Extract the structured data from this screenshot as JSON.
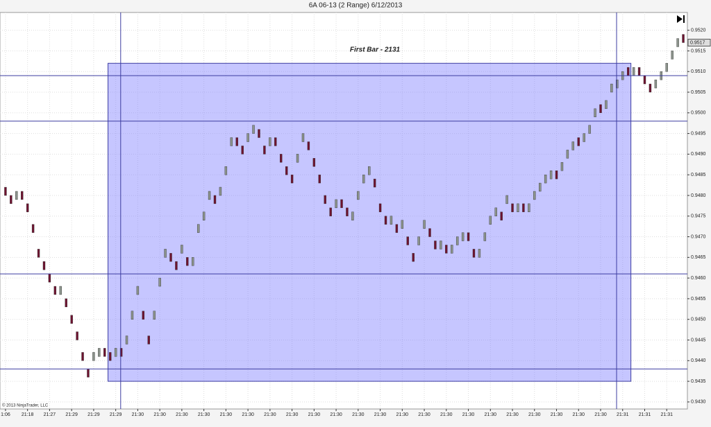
{
  "chart_data": {
    "type": "candlestick",
    "title": "6A 06-13 (2 Range)  6/12/2013",
    "annotation": "First Bar - 2131",
    "copyright": "© 2013 NinjaTrader, LLC",
    "categories": [
      "1:06",
      null,
      null,
      null,
      "21:18",
      null,
      null,
      null,
      "21:27",
      null,
      null,
      null,
      "21:29",
      null,
      null,
      null,
      "21:29",
      null,
      null,
      null,
      "21:29",
      null,
      null,
      null,
      "21:30",
      null,
      null,
      null,
      "21:30",
      null,
      null,
      null,
      "21:30",
      null,
      null,
      null,
      "21:30",
      null,
      null,
      null,
      "21:30",
      null,
      null,
      null,
      "21:30",
      null,
      null,
      null,
      "21:30",
      null,
      null,
      null,
      "21:30",
      null,
      null,
      null,
      "21:30",
      null,
      null,
      null,
      "21:30",
      null,
      null,
      null,
      "21:30",
      null,
      null,
      null,
      "21:30",
      null,
      null,
      null,
      "21:30",
      null,
      null,
      null,
      "21:30",
      null,
      null,
      null,
      "21:30",
      null,
      null,
      null,
      "21:30",
      null,
      null,
      null,
      "21:30",
      null,
      null,
      null,
      "21:30",
      null,
      null,
      null,
      "21:30",
      null,
      null,
      null,
      "21:30",
      null,
      null,
      null,
      "21:30",
      null,
      null,
      null,
      "21:30",
      null,
      null,
      null,
      "21:31",
      null,
      null,
      null,
      "21:31",
      null,
      null,
      null,
      "21:31",
      null,
      null,
      null
    ],
    "open": [
      0.9482,
      0.948,
      0.9479,
      0.9481,
      0.9478,
      0.9473,
      0.9467,
      0.9464,
      0.9461,
      0.9458,
      0.9456,
      0.9455,
      0.9451,
      0.9447,
      0.9442,
      0.9438,
      0.944,
      0.9441,
      0.9443,
      0.9442,
      0.9441,
      0.9443,
      0.9444,
      0.945,
      0.9456,
      0.9452,
      0.9446,
      0.945,
      0.9458,
      0.9465,
      0.9466,
      0.9464,
      0.9466,
      0.9465,
      0.9463,
      0.9471,
      0.9474,
      0.9479,
      0.948,
      0.948,
      0.9485,
      0.9492,
      0.9494,
      0.9492,
      0.9493,
      0.9495,
      0.9496,
      0.9492,
      0.9492,
      0.9494,
      0.949,
      0.9487,
      0.9485,
      0.9488,
      0.9493,
      0.9493,
      0.9489,
      0.9485,
      0.948,
      0.9477,
      0.9477,
      0.9479,
      0.9477,
      0.9474,
      0.9479,
      0.9483,
      0.9485,
      0.9484,
      0.9478,
      0.9475,
      0.9473,
      0.9473,
      0.9472,
      0.947,
      0.9466,
      0.9468,
      0.9472,
      0.9472,
      0.9469,
      0.9467,
      0.9468,
      0.9466,
      0.9468,
      0.9469,
      0.9471,
      0.9467,
      0.9465,
      0.9469,
      0.9473,
      0.9475,
      0.9476,
      0.9478,
      0.9478,
      0.9476,
      0.9478,
      0.9476,
      0.9479,
      0.9481,
      0.9483,
      0.9484,
      0.9486,
      0.9486,
      0.9489,
      0.9491,
      0.9494,
      0.9493,
      0.9495,
      0.9499,
      0.9502,
      0.9501,
      0.9505,
      0.9506,
      0.9508,
      0.9511,
      0.9509,
      0.9511,
      0.9509,
      0.9507,
      0.9506,
      0.9508,
      0.951,
      0.9513,
      0.9516,
      0.9519
    ],
    "close": [
      0.948,
      0.9478,
      0.9481,
      0.9479,
      0.9476,
      0.9471,
      0.9465,
      0.9462,
      0.9459,
      0.9456,
      0.9458,
      0.9453,
      0.9449,
      0.9445,
      0.944,
      0.9436,
      0.9442,
      0.9443,
      0.9441,
      0.944,
      0.9443,
      0.9441,
      0.9446,
      0.9452,
      0.9458,
      0.945,
      0.9444,
      0.9452,
      0.946,
      0.9467,
      0.9464,
      0.9462,
      0.9468,
      0.9463,
      0.9465,
      0.9473,
      0.9476,
      0.9481,
      0.9478,
      0.9482,
      0.9487,
      0.9494,
      0.9492,
      0.949,
      0.9495,
      0.9497,
      0.9494,
      0.949,
      0.9494,
      0.9492,
      0.9488,
      0.9485,
      0.9483,
      0.949,
      0.9495,
      0.9491,
      0.9487,
      0.9483,
      0.9478,
      0.9475,
      0.9479,
      0.9477,
      0.9475,
      0.9476,
      0.9481,
      0.9485,
      0.9487,
      0.9482,
      0.9476,
      0.9473,
      0.9475,
      0.9471,
      0.9474,
      0.9468,
      0.9464,
      0.947,
      0.9474,
      0.947,
      0.9467,
      0.9469,
      0.9466,
      0.9468,
      0.947,
      0.9471,
      0.9469,
      0.9465,
      0.9467,
      0.9471,
      0.9475,
      0.9477,
      0.9474,
      0.948,
      0.9476,
      0.9478,
      0.9476,
      0.9478,
      0.9481,
      0.9483,
      0.9485,
      0.9486,
      0.9484,
      0.9488,
      0.9491,
      0.9493,
      0.9492,
      0.9495,
      0.9497,
      0.9501,
      0.95,
      0.9503,
      0.9507,
      0.9508,
      0.951,
      0.9509,
      0.9511,
      0.9509,
      0.9507,
      0.9505,
      0.9508,
      0.951,
      0.9512,
      0.9515,
      0.9518,
      0.9517
    ],
    "up_color": "#8c948c",
    "down_color": "#6e1330",
    "xlim": [
      -1,
      123.75
    ],
    "ylim": [
      0.94283,
      0.95243
    ],
    "yticks": [
      {
        "value": 0.943,
        "label": "0.9430"
      },
      {
        "value": 0.9435,
        "label": "0.9435"
      },
      {
        "value": 0.944,
        "label": "0.9440"
      },
      {
        "value": 0.9445,
        "label": "0.9445"
      },
      {
        "value": 0.945,
        "label": "0.9450"
      },
      {
        "value": 0.9455,
        "label": "0.9455"
      },
      {
        "value": 0.946,
        "label": "0.9460"
      },
      {
        "value": 0.9465,
        "label": "0.9465"
      },
      {
        "value": 0.947,
        "label": "0.9470"
      },
      {
        "value": 0.9475,
        "label": "0.9475"
      },
      {
        "value": 0.948,
        "label": "0.9480"
      },
      {
        "value": 0.9485,
        "label": "0.9485"
      },
      {
        "value": 0.949,
        "label": "0.9490"
      },
      {
        "value": 0.9495,
        "label": "0.9495"
      },
      {
        "value": 0.95,
        "label": "0.9500"
      },
      {
        "value": 0.9505,
        "label": "0.9505"
      },
      {
        "value": 0.951,
        "label": "0.9510"
      },
      {
        "value": 0.9515,
        "label": "0.9515"
      },
      {
        "value": 0.952,
        "label": "0.9520"
      }
    ],
    "grid": true,
    "hlines": [
      0.9509,
      0.9498,
      0.9461,
      0.9438
    ],
    "vlines": [
      20.9,
      110.9
    ],
    "line_color": "#3c3ca0",
    "box": {
      "x": [
        18.6,
        113.5
      ],
      "y": [
        0.9435,
        0.9512
      ],
      "color": "#8080ff"
    },
    "last_price": {
      "value": 0.9517,
      "label": "0.9517"
    }
  }
}
